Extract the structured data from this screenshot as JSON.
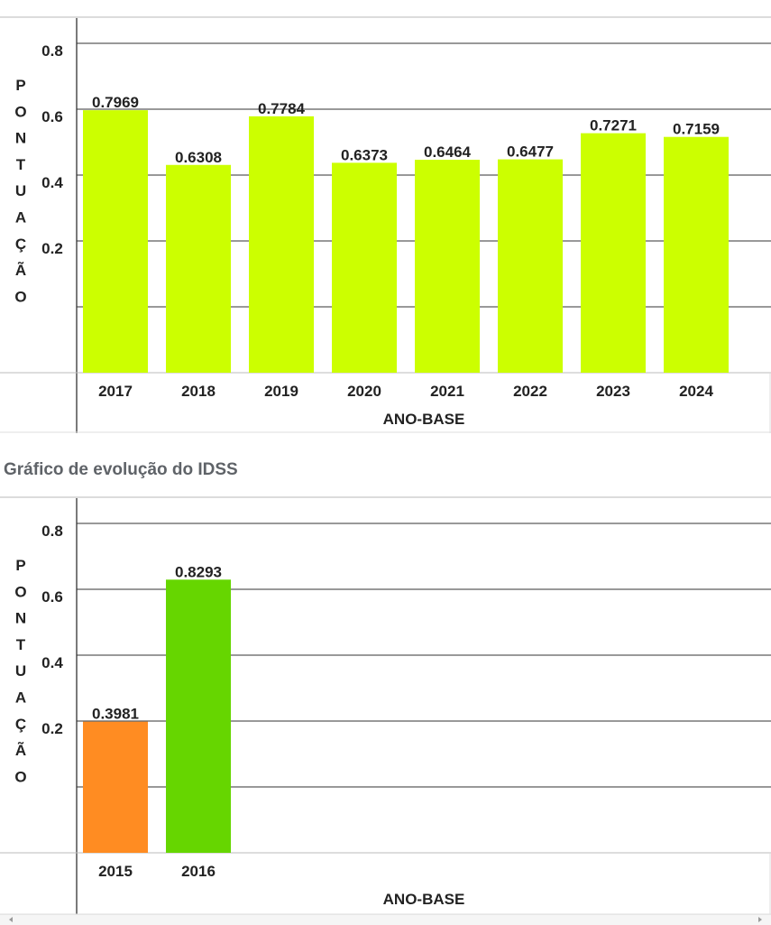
{
  "section_title": "Gráfico de evolução do IDSS",
  "chart_data": [
    {
      "type": "bar",
      "categories": [
        "2017",
        "2018",
        "2019",
        "2020",
        "2021",
        "2022",
        "2023",
        "2024"
      ],
      "values": [
        0.7969,
        0.6308,
        0.7784,
        0.6373,
        0.6464,
        0.6477,
        0.7271,
        0.7159
      ],
      "data_labels": [
        "0.7969",
        "0.6308",
        "0.7784",
        "0.6373",
        "0.6464",
        "0.6477",
        "0.7271",
        "0.7159"
      ],
      "bar_colors": [
        "#ccff00",
        "#ccff00",
        "#ccff00",
        "#ccff00",
        "#ccff00",
        "#ccff00",
        "#ccff00",
        "#ccff00"
      ],
      "title": "",
      "xlabel": "ANO-BASE",
      "ylabel": "PONTUAÇÃO",
      "yticks": [
        "0.2",
        "0.4",
        "0.6",
        "0.8",
        "1.0"
      ],
      "ylim": [
        0,
        1.1
      ],
      "grid": true
    },
    {
      "type": "bar",
      "categories": [
        "2015",
        "2016"
      ],
      "values": [
        0.3981,
        0.8293
      ],
      "data_labels": [
        "0.3981",
        "0.8293"
      ],
      "bar_colors": [
        "#ff8c22",
        "#66d600"
      ],
      "title": "",
      "xlabel": "ANO-BASE",
      "ylabel": "PONTUAÇÃO",
      "yticks": [
        "0.2",
        "0.4",
        "0.6",
        "0.8",
        "1.0"
      ],
      "ylim": [
        0,
        1.1
      ],
      "grid": true
    }
  ]
}
